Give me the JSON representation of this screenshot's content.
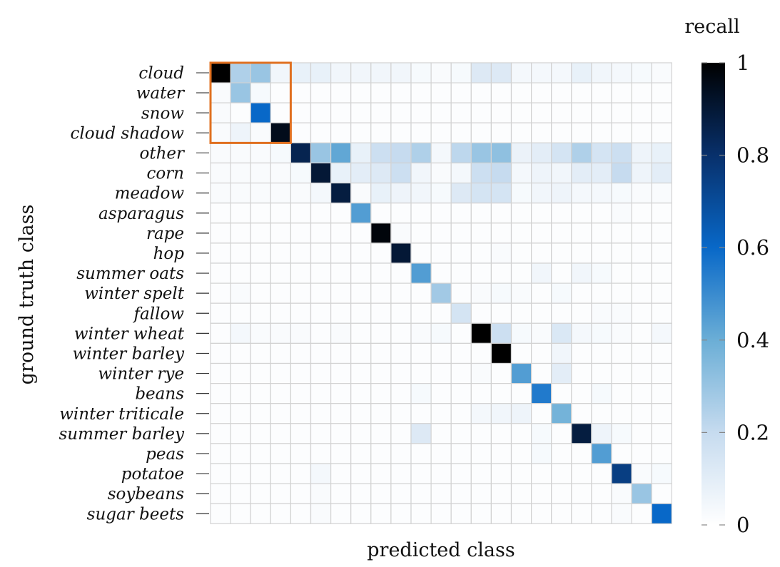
{
  "chart_data": {
    "type": "heatmap",
    "title": "",
    "xlabel": "predicted class",
    "ylabel": "ground truth class",
    "rows": [
      "cloud",
      "water",
      "snow",
      "cloud shadow",
      "other",
      "corn",
      "meadow",
      "asparagus",
      "rape",
      "hop",
      "summer oats",
      "winter spelt",
      "fallow",
      "winter wheat",
      "winter barley",
      "winter rye",
      "beans",
      "winter triticale",
      "summer barley",
      "peas",
      "potatoe",
      "soybeans",
      "sugar beets"
    ],
    "columns_count": 23,
    "colorbar": {
      "title": "recall",
      "range": [
        0,
        1
      ],
      "ticks": [
        0,
        0.2,
        0.4,
        0.6,
        0.8,
        1
      ],
      "tick_labels": [
        "0",
        "0.2",
        "0.4",
        "0.6",
        "0.8",
        "1"
      ],
      "colors": [
        "#ffffff",
        "#c6dbef",
        "#6baed6",
        "#0868c8",
        "#08306b",
        "#000000"
      ]
    },
    "highlight": {
      "rows": [
        0,
        3
      ],
      "cols": [
        0,
        3
      ],
      "color": "#e07020"
    },
    "values": [
      [
        1.0,
        0.25,
        0.3,
        0.05,
        0.08,
        0.08,
        0.05,
        0.05,
        0.05,
        0.05,
        0.03,
        0.02,
        0.03,
        0.12,
        0.12,
        0.04,
        0.04,
        0.04,
        0.08,
        0.05,
        0.04,
        0.03,
        0.02
      ],
      [
        0.02,
        0.3,
        0.03,
        0.01,
        0.01,
        0.01,
        0.01,
        0.01,
        0.01,
        0.01,
        0.01,
        0.01,
        0.01,
        0.01,
        0.01,
        0.01,
        0.01,
        0.01,
        0.01,
        0.01,
        0.01,
        0.01,
        0.01
      ],
      [
        0.02,
        0.01,
        0.6,
        0.01,
        0.01,
        0.01,
        0.01,
        0.01,
        0.01,
        0.01,
        0.01,
        0.01,
        0.01,
        0.01,
        0.01,
        0.01,
        0.01,
        0.01,
        0.01,
        0.01,
        0.01,
        0.01,
        0.01
      ],
      [
        0.02,
        0.06,
        0.02,
        0.95,
        0.01,
        0.01,
        0.01,
        0.01,
        0.01,
        0.01,
        0.01,
        0.01,
        0.01,
        0.01,
        0.01,
        0.01,
        0.01,
        0.01,
        0.01,
        0.01,
        0.01,
        0.01,
        0.01
      ],
      [
        0.02,
        0.02,
        0.02,
        0.03,
        0.85,
        0.3,
        0.42,
        0.08,
        0.18,
        0.2,
        0.25,
        0.04,
        0.22,
        0.3,
        0.32,
        0.07,
        0.1,
        0.15,
        0.25,
        0.15,
        0.18,
        0.06,
        0.08
      ],
      [
        0.02,
        0.02,
        0.02,
        0.02,
        0.03,
        0.9,
        0.08,
        0.1,
        0.12,
        0.18,
        0.05,
        0.02,
        0.04,
        0.18,
        0.2,
        0.04,
        0.06,
        0.05,
        0.1,
        0.1,
        0.2,
        0.06,
        0.1
      ],
      [
        0.02,
        0.02,
        0.02,
        0.02,
        0.02,
        0.04,
        0.88,
        0.02,
        0.08,
        0.06,
        0.05,
        0.03,
        0.12,
        0.15,
        0.15,
        0.03,
        0.05,
        0.06,
        0.04,
        0.04,
        0.03,
        0.02,
        0.02
      ],
      [
        0.01,
        0.01,
        0.01,
        0.01,
        0.01,
        0.01,
        0.01,
        0.45,
        0.01,
        0.01,
        0.01,
        0.01,
        0.01,
        0.01,
        0.01,
        0.01,
        0.01,
        0.01,
        0.01,
        0.01,
        0.02,
        0.01,
        0.01
      ],
      [
        0.01,
        0.01,
        0.01,
        0.01,
        0.01,
        0.01,
        0.01,
        0.01,
        0.98,
        0.02,
        0.01,
        0.01,
        0.01,
        0.01,
        0.01,
        0.01,
        0.01,
        0.01,
        0.01,
        0.01,
        0.01,
        0.01,
        0.01
      ],
      [
        0.01,
        0.01,
        0.01,
        0.01,
        0.01,
        0.01,
        0.01,
        0.01,
        0.01,
        0.9,
        0.01,
        0.01,
        0.01,
        0.01,
        0.02,
        0.01,
        0.01,
        0.01,
        0.01,
        0.01,
        0.01,
        0.01,
        0.01
      ],
      [
        0.01,
        0.01,
        0.01,
        0.01,
        0.01,
        0.01,
        0.01,
        0.01,
        0.01,
        0.01,
        0.45,
        0.01,
        0.01,
        0.01,
        0.01,
        0.01,
        0.05,
        0.01,
        0.05,
        0.03,
        0.01,
        0.01,
        0.01
      ],
      [
        0.01,
        0.02,
        0.01,
        0.01,
        0.01,
        0.01,
        0.01,
        0.01,
        0.01,
        0.01,
        0.01,
        0.28,
        0.01,
        0.02,
        0.03,
        0.02,
        0.01,
        0.03,
        0.01,
        0.01,
        0.01,
        0.01,
        0.01
      ],
      [
        0.01,
        0.01,
        0.01,
        0.01,
        0.01,
        0.01,
        0.01,
        0.01,
        0.01,
        0.01,
        0.01,
        0.01,
        0.15,
        0.01,
        0.01,
        0.01,
        0.01,
        0.01,
        0.01,
        0.02,
        0.02,
        0.01,
        0.01
      ],
      [
        0.01,
        0.04,
        0.02,
        0.02,
        0.02,
        0.01,
        0.02,
        0.01,
        0.01,
        0.01,
        0.02,
        0.03,
        0.01,
        1.0,
        0.18,
        0.03,
        0.02,
        0.13,
        0.04,
        0.03,
        0.02,
        0.01,
        0.04
      ],
      [
        0.01,
        0.01,
        0.01,
        0.01,
        0.01,
        0.01,
        0.01,
        0.01,
        0.01,
        0.01,
        0.01,
        0.01,
        0.01,
        0.01,
        1.0,
        0.01,
        0.01,
        0.05,
        0.01,
        0.01,
        0.01,
        0.01,
        0.01
      ],
      [
        0.01,
        0.01,
        0.01,
        0.01,
        0.01,
        0.01,
        0.01,
        0.01,
        0.01,
        0.01,
        0.01,
        0.01,
        0.01,
        0.02,
        0.01,
        0.45,
        0.01,
        0.1,
        0.01,
        0.01,
        0.01,
        0.01,
        0.01
      ],
      [
        0.01,
        0.01,
        0.01,
        0.01,
        0.01,
        0.01,
        0.01,
        0.01,
        0.01,
        0.01,
        0.03,
        0.01,
        0.01,
        0.01,
        0.01,
        0.01,
        0.55,
        0.01,
        0.01,
        0.03,
        0.01,
        0.01,
        0.01
      ],
      [
        0.01,
        0.01,
        0.01,
        0.01,
        0.01,
        0.01,
        0.01,
        0.01,
        0.01,
        0.01,
        0.01,
        0.01,
        0.01,
        0.04,
        0.05,
        0.06,
        0.01,
        0.38,
        0.01,
        0.01,
        0.01,
        0.01,
        0.01
      ],
      [
        0.01,
        0.01,
        0.01,
        0.01,
        0.01,
        0.01,
        0.01,
        0.01,
        0.01,
        0.01,
        0.12,
        0.01,
        0.01,
        0.01,
        0.01,
        0.01,
        0.03,
        0.01,
        0.88,
        0.06,
        0.03,
        0.01,
        0.01
      ],
      [
        0.01,
        0.01,
        0.01,
        0.01,
        0.01,
        0.01,
        0.01,
        0.01,
        0.01,
        0.01,
        0.01,
        0.01,
        0.01,
        0.01,
        0.01,
        0.01,
        0.03,
        0.01,
        0.01,
        0.45,
        0.01,
        0.01,
        0.01
      ],
      [
        0.01,
        0.01,
        0.01,
        0.01,
        0.01,
        0.04,
        0.01,
        0.01,
        0.01,
        0.01,
        0.01,
        0.01,
        0.01,
        0.01,
        0.01,
        0.01,
        0.01,
        0.01,
        0.01,
        0.01,
        0.75,
        0.02,
        0.03
      ],
      [
        0.01,
        0.01,
        0.01,
        0.01,
        0.01,
        0.02,
        0.01,
        0.01,
        0.01,
        0.01,
        0.01,
        0.01,
        0.01,
        0.01,
        0.01,
        0.01,
        0.01,
        0.01,
        0.01,
        0.01,
        0.02,
        0.3,
        0.01
      ],
      [
        0.01,
        0.01,
        0.01,
        0.01,
        0.01,
        0.02,
        0.01,
        0.01,
        0.01,
        0.01,
        0.01,
        0.01,
        0.01,
        0.01,
        0.01,
        0.01,
        0.01,
        0.01,
        0.01,
        0.01,
        0.02,
        0.01,
        0.6
      ]
    ]
  }
}
